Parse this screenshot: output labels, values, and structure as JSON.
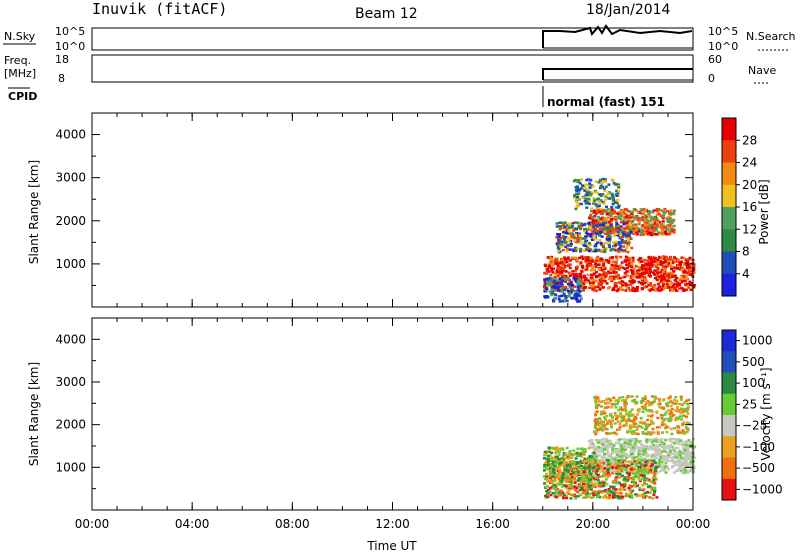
{
  "header": {
    "station": "Inuvik (fitACF)",
    "beam": "Beam 12",
    "date": "18/Jan/2014"
  },
  "top_panels": {
    "nsky_label": "N.Sky",
    "nsky_ticks": [
      "10^5",
      "10^0"
    ],
    "nsearch_label": "N.Search",
    "nsearch_ticks": [
      "10^5",
      "10^0"
    ],
    "freq_label_1": "Freq.",
    "freq_label_2": "[MHz]",
    "freq_ticks": [
      "18",
      "8"
    ],
    "nave_label": "Nave",
    "nave_ticks": [
      "60",
      "0"
    ],
    "cpid_label": "CPID",
    "cpid_text": "normal (fast) 151"
  },
  "colors": {
    "power": [
      "#1a22e0",
      "#1e4fb8",
      "#2f8a48",
      "#4fa060",
      "#f0c020",
      "#f08a10",
      "#f04010",
      "#e80000"
    ],
    "velocity": [
      "#1a2ad8",
      "#2250b8",
      "#2a8a40",
      "#66cc33",
      "#c8c8c0",
      "#f0a020",
      "#f07010",
      "#e81010"
    ]
  },
  "chart_data": [
    {
      "type": "heatmap",
      "title": "Power",
      "ylabel": "Slant Range [km]",
      "xlabel": "",
      "x_tick_labels": [
        "00:00",
        "04:00",
        "08:00",
        "12:00",
        "16:00",
        "20:00",
        "00:00"
      ],
      "y_tick_labels": [
        "1000",
        "2000",
        "3000",
        "4000"
      ],
      "ylim": [
        0,
        4500
      ],
      "xlim_hours": [
        0,
        24
      ],
      "colorbar_label": "Power [dB]",
      "colorbar_ticks": [
        "4",
        "8",
        "12",
        "16",
        "20",
        "24",
        "28"
      ],
      "data_window_hours": [
        18,
        24
      ]
    },
    {
      "type": "heatmap",
      "title": "Velocity",
      "ylabel": "Slant Range [km]",
      "xlabel": "Time UT",
      "x_tick_labels": [
        "00:00",
        "04:00",
        "08:00",
        "12:00",
        "16:00",
        "20:00",
        "00:00"
      ],
      "y_tick_labels": [
        "1000",
        "2000",
        "3000",
        "4000"
      ],
      "ylim": [
        0,
        4500
      ],
      "xlim_hours": [
        0,
        24
      ],
      "colorbar_label": "Velocity [m s⁻¹]",
      "colorbar_ticks": [
        "1000",
        "500",
        "100",
        "25",
        "−25",
        "−100",
        "−500",
        "−1000"
      ],
      "data_window_hours": [
        18,
        24
      ]
    }
  ]
}
